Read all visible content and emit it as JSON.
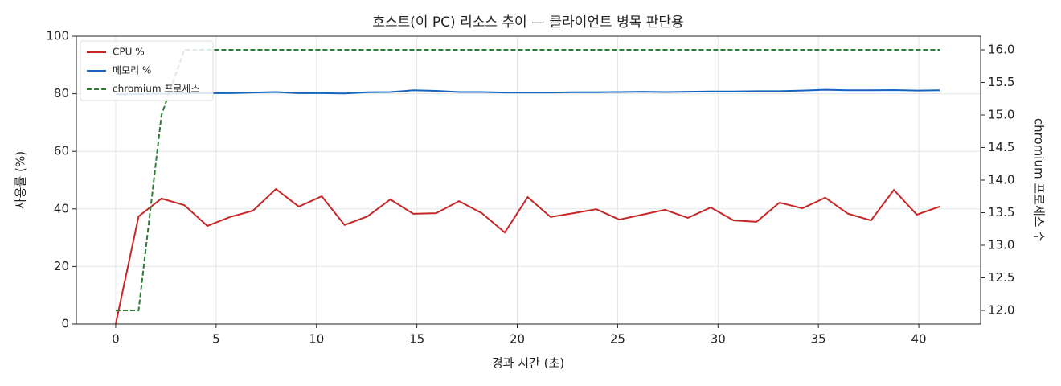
{
  "chart_data": {
    "type": "line",
    "title": "호스트(이 PC) 리소스 추이 — 클라이언트 병목 판단용",
    "xlabel": "경과 시간 (초)",
    "ylabel": "사용률 (%)",
    "y2label": "chromium 프로세스 수",
    "x": [
      0,
      1.14,
      2.28,
      3.42,
      4.56,
      5.7,
      6.84,
      7.98,
      9.12,
      10.26,
      11.4,
      12.54,
      13.68,
      14.82,
      15.96,
      17.1,
      18.24,
      19.38,
      20.52,
      21.66,
      22.8,
      23.94,
      25.08,
      26.22,
      27.36,
      28.5,
      29.64,
      30.78,
      31.92,
      33.06,
      34.2,
      35.34,
      36.48,
      37.62,
      38.76,
      39.9,
      41.04
    ],
    "series": [
      {
        "name": "CPU %",
        "color": "#c62828",
        "style": "solid",
        "values": [
          0,
          37.4,
          43.6,
          41.3,
          34.1,
          37.2,
          39.4,
          46.9,
          40.8,
          44.4,
          34.4,
          37.4,
          43.3,
          38.3,
          38.5,
          42.7,
          38.5,
          31.8,
          44.1,
          37.2,
          38.5,
          39.9,
          36.3,
          38.0,
          39.7,
          36.9,
          40.5,
          36.0,
          35.5,
          42.2,
          40.2,
          43.9,
          38.3,
          36.0,
          46.6,
          38.0,
          40.8
        ]
      },
      {
        "name": "메모리 %",
        "color": "#1565c0",
        "style": "solid",
        "values": [
          79.8,
          79.9,
          80.0,
          80.1,
          80.2,
          80.2,
          80.4,
          80.6,
          80.2,
          80.2,
          80.1,
          80.5,
          80.6,
          81.2,
          81.0,
          80.6,
          80.6,
          80.4,
          80.4,
          80.4,
          80.5,
          80.5,
          80.6,
          80.7,
          80.6,
          80.7,
          80.8,
          80.8,
          80.9,
          80.9,
          81.1,
          81.4,
          81.2,
          81.2,
          81.3,
          81.1,
          81.2
        ]
      },
      {
        "name": "chromium 프로세스",
        "color": "#2e7d32",
        "style": "dashed",
        "axis": "y2",
        "values": [
          12,
          12,
          15,
          16,
          16,
          16,
          16,
          16,
          16,
          16,
          16,
          16,
          16,
          16,
          16,
          16,
          16,
          16,
          16,
          16,
          16,
          16,
          16,
          16,
          16,
          16,
          16,
          16,
          16,
          16,
          16,
          16,
          16,
          16,
          16,
          16,
          16
        ]
      }
    ],
    "xlim": [
      -1.96,
      43.08
    ],
    "xticks": [
      0,
      5,
      10,
      15,
      20,
      25,
      30,
      35,
      40
    ],
    "ylim": [
      0,
      100
    ],
    "yticks": [
      0,
      20,
      40,
      60,
      80,
      100
    ],
    "y2lim": [
      11.79,
      16.21
    ],
    "y2ticks": [
      {
        "value": 12,
        "label": "12.0"
      },
      12.5,
      {
        "value": 13,
        "label": "13.0"
      },
      13.5,
      {
        "value": 14,
        "label": "14.0"
      },
      14.5,
      {
        "value": 15,
        "label": "15.0"
      },
      15.5,
      {
        "value": 16,
        "label": "16.0"
      }
    ],
    "grid": true,
    "legend": "upper left"
  }
}
